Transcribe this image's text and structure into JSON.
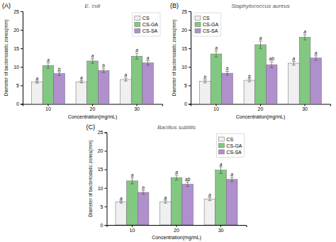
{
  "chart_data": [
    {
      "type": "bar",
      "title": "(A)",
      "annotations": [
        "E. coli"
      ],
      "categories": [
        "10",
        "20",
        "30"
      ],
      "series": [
        {
          "name": "CS",
          "color": "#f0f0f0",
          "values": [
            5.9,
            6.0,
            6.6
          ],
          "errors": [
            0.3,
            0.3,
            0.4
          ],
          "letters": [
            "a",
            "a",
            "a"
          ]
        },
        {
          "name": "CS-GA",
          "color": "#82c882",
          "values": [
            10.4,
            11.6,
            12.9
          ],
          "errors": [
            0.7,
            0.6,
            0.8
          ],
          "letters": [
            "a",
            "a",
            "a"
          ]
        },
        {
          "name": "CS-SA",
          "color": "#b090cc",
          "values": [
            8.2,
            9.0,
            11.1
          ],
          "errors": [
            0.5,
            0.5,
            0.6
          ],
          "letters": [
            "b",
            "b",
            "a"
          ]
        }
      ],
      "x_label": "Concentration(mg/mL)",
      "y_label": "Diameter of bacteriostatic zones(mm)",
      "ylim": [
        0,
        25
      ],
      "yticks": [
        0,
        5,
        10,
        15,
        20,
        25
      ],
      "grid": false,
      "legend": "upper right"
    },
    {
      "type": "bar",
      "title": "(B)",
      "annotations": [
        "Staphylococcus aureus"
      ],
      "categories": [
        "10",
        "20",
        "30"
      ],
      "series": [
        {
          "name": "CS",
          "color": "#f0f0f0",
          "values": [
            6.1,
            6.4,
            11.0
          ],
          "errors": [
            0.4,
            0.4,
            0.5
          ],
          "letters": [
            "b",
            "b",
            "a"
          ]
        },
        {
          "name": "CS-GA",
          "color": "#82c882",
          "values": [
            13.5,
            16.0,
            18.0
          ],
          "errors": [
            0.8,
            1.0,
            0.7
          ],
          "letters": [
            "a",
            "a",
            "a"
          ]
        },
        {
          "name": "CS-SA",
          "color": "#b090cc",
          "values": [
            8.3,
            10.6,
            12.4
          ],
          "errors": [
            0.5,
            0.8,
            0.6
          ],
          "letters": [
            "b",
            "ab",
            "a"
          ]
        }
      ],
      "x_label": "Concentration(mg/mL)",
      "y_label": "Diameter of bacteriostatic zones(mm)",
      "ylim": [
        0,
        25
      ],
      "yticks": [
        0,
        5,
        10,
        15,
        20,
        25
      ],
      "grid": false,
      "legend": "upper left"
    },
    {
      "type": "bar",
      "title": "(C)",
      "annotations": [
        "Bacillus subtilis"
      ],
      "categories": [
        "10",
        "20",
        "30"
      ],
      "series": [
        {
          "name": "CS",
          "color": "#f0f0f0",
          "values": [
            6.2,
            6.3,
            7.0
          ],
          "errors": [
            0.3,
            0.4,
            0.4
          ],
          "letters": [
            "a",
            "a",
            "a"
          ]
        },
        {
          "name": "CS-GA",
          "color": "#82c882",
          "values": [
            11.9,
            12.8,
            14.8
          ],
          "errors": [
            0.8,
            0.7,
            0.9
          ],
          "letters": [
            "a",
            "a",
            "a"
          ]
        },
        {
          "name": "CS-SA",
          "color": "#b090cc",
          "values": [
            8.8,
            11.0,
            12.3
          ],
          "errors": [
            0.5,
            0.6,
            0.6
          ],
          "letters": [
            "b",
            "ab",
            "a"
          ]
        }
      ],
      "x_label": "Concentration(mg/mL)",
      "y_label": "Diameter of bacteriostatic zones(mm)",
      "ylim": [
        0,
        25
      ],
      "yticks": [
        0,
        5,
        10,
        15,
        20,
        25
      ],
      "grid": false,
      "legend": "upper right"
    }
  ]
}
